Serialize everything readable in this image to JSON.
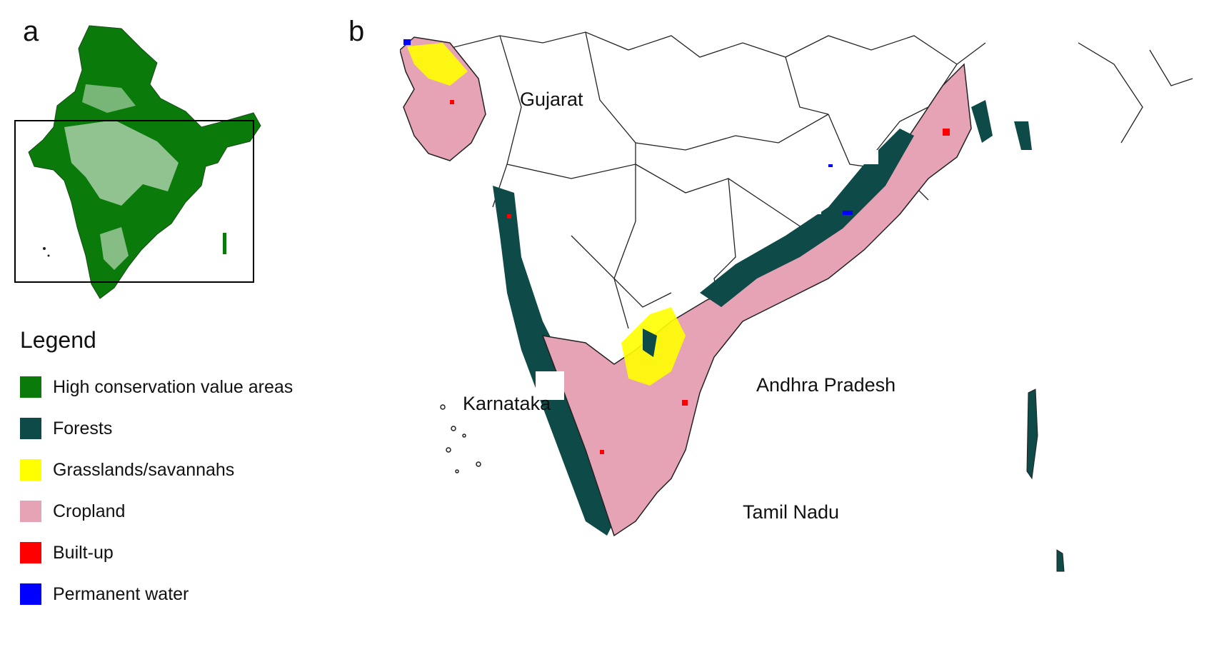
{
  "panels": {
    "a": "a",
    "b": "b"
  },
  "legend": {
    "title": "Legend",
    "items": [
      {
        "label": "High conservation value areas",
        "color": "#0a7a0a"
      },
      {
        "label": "Forests",
        "color": "#0e4a47"
      },
      {
        "label": "Grasslands/savannahs",
        "color": "#ffff00"
      },
      {
        "label": "Cropland",
        "color": "#e6a3b6"
      },
      {
        "label": "Built-up",
        "color": "#ff0000"
      },
      {
        "label": "Permanent water",
        "color": "#0000ff"
      }
    ]
  },
  "regions": {
    "gujarat": "Gujarat",
    "karnataka": "Karnataka",
    "andhra_pradesh": "Andhra Pradesh",
    "tamil_nadu": "Tamil Nadu"
  }
}
